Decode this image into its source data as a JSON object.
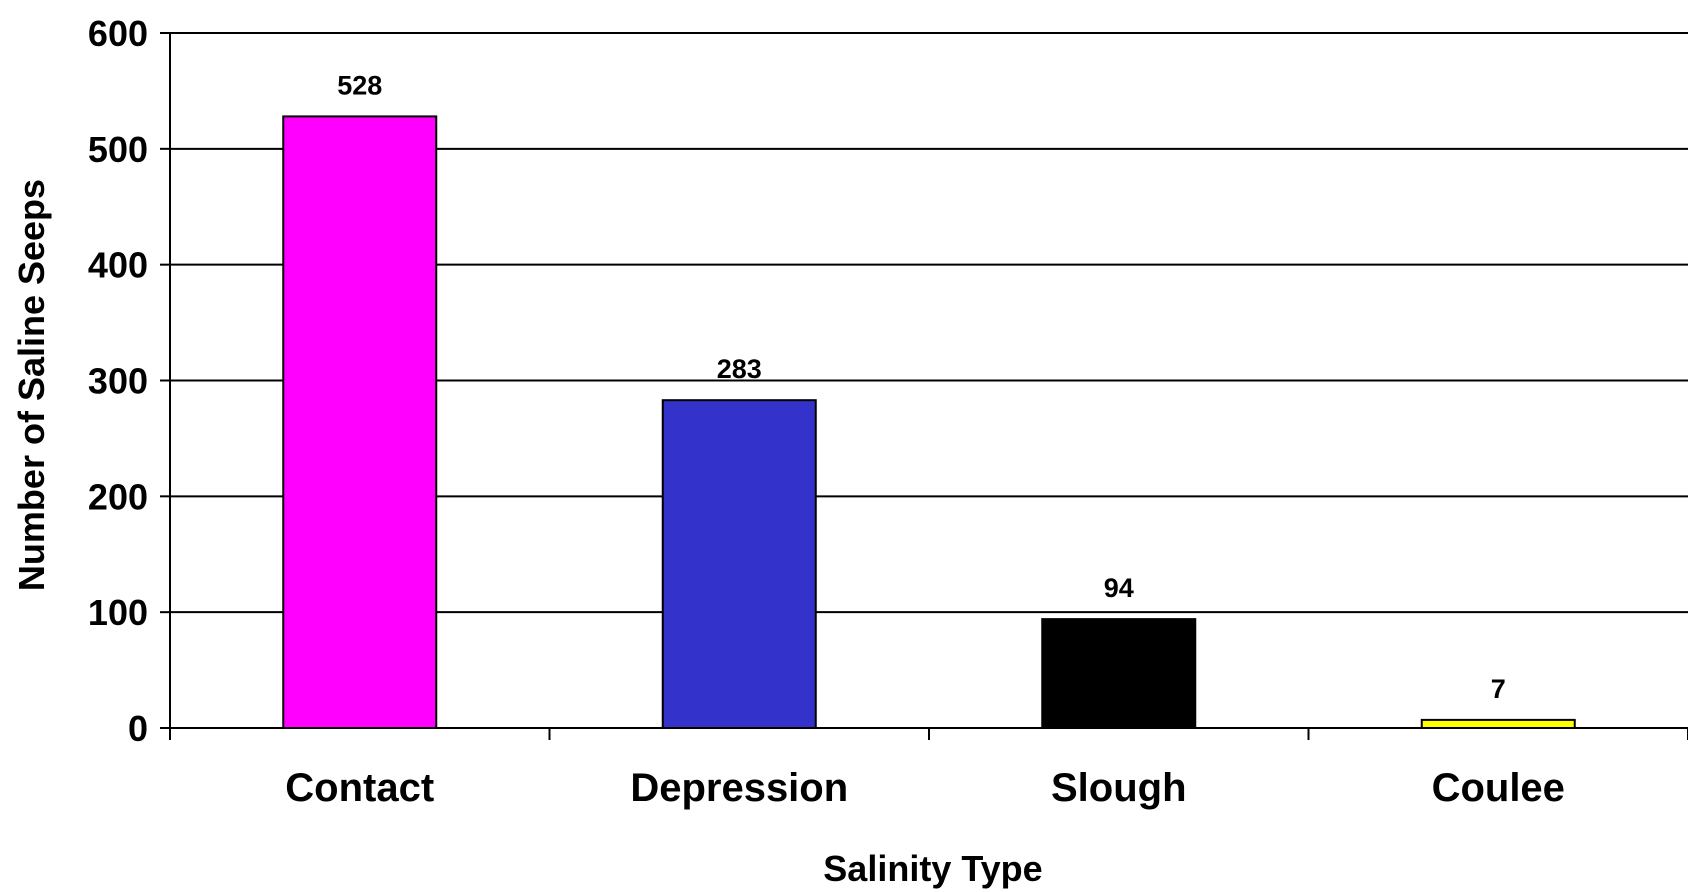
{
  "chart_data": {
    "type": "bar",
    "title": "",
    "xlabel": "Salinity Type",
    "ylabel": "Number of Saline Seeps",
    "ylim": [
      0,
      600
    ],
    "yticks": [
      0,
      100,
      200,
      300,
      400,
      500,
      600
    ],
    "grid": true,
    "categories": [
      "Contact",
      "Depression",
      "Slough",
      "Coulee"
    ],
    "values": [
      528,
      283,
      94,
      7
    ],
    "data_labels": [
      "528",
      "283",
      "94",
      "7"
    ],
    "colors": [
      "#FF00FF",
      "#3333CC",
      "#000000",
      "#FFFF00"
    ]
  }
}
